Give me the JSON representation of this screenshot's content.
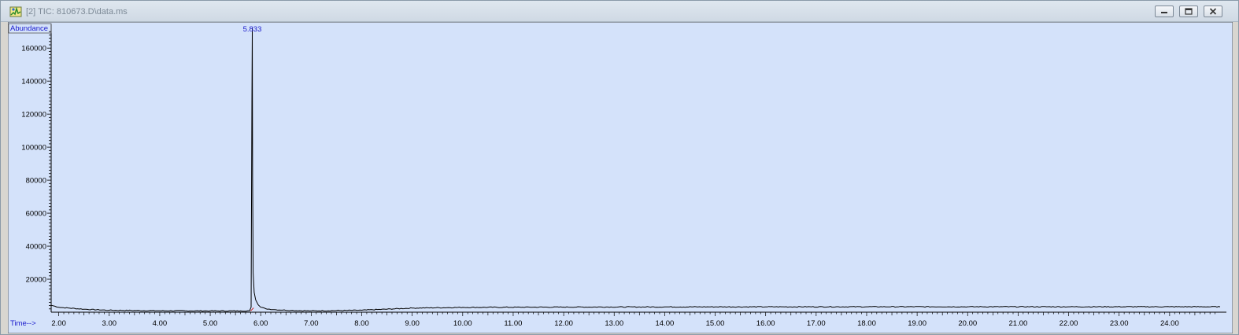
{
  "window": {
    "title": "[2] TIC: 810673.D\\data.ms",
    "icons": [
      "chromatogram-app-icon",
      "minimize-icon",
      "restore-icon",
      "close-icon"
    ]
  },
  "chart_data": {
    "type": "line",
    "title": "",
    "xlabel": "Time-->",
    "ylabel": "Abundance",
    "xlim": [
      1.85,
      25.0
    ],
    "ylim": [
      0,
      172000
    ],
    "x_ticks": [
      "2.00",
      "3.00",
      "4.00",
      "5.00",
      "6.00",
      "7.00",
      "8.00",
      "9.00",
      "10.00",
      "11.00",
      "12.00",
      "13.00",
      "14.00",
      "15.00",
      "16.00",
      "17.00",
      "18.00",
      "19.00",
      "20.00",
      "21.00",
      "22.00",
      "23.00",
      "24.00"
    ],
    "y_ticks": [
      "20000",
      "40000",
      "60000",
      "80000",
      "100000",
      "120000",
      "140000",
      "160000"
    ],
    "peak_labels": [
      {
        "x": 5.833,
        "label": "5.833"
      }
    ],
    "series": [
      {
        "x": [
          1.85,
          2.0,
          2.5,
          3.0,
          4.0,
          5.0,
          5.6,
          5.78,
          5.81,
          5.825,
          5.833,
          5.84,
          5.85,
          5.87,
          5.9,
          5.95,
          6.0,
          6.1,
          6.3,
          6.6,
          7.0,
          8.0,
          9.0,
          10.0,
          12.0,
          14.0,
          16.0,
          18.0,
          20.0,
          22.0,
          24.0,
          25.0
        ],
        "y": [
          4200,
          3000,
          1800,
          1200,
          900,
          800,
          800,
          900,
          3000,
          127000,
          172000,
          82000,
          24000,
          12000,
          7500,
          4500,
          3000,
          2100,
          1500,
          1100,
          800,
          1200,
          2500,
          2900,
          3100,
          3200,
          3250,
          3300,
          3300,
          3300,
          3300,
          3300
        ]
      }
    ],
    "colors": {
      "background": "#d4e2fa",
      "trace": "#000000",
      "peak_label": "#1a1acc",
      "axis_label": "#1a1acc"
    },
    "grid": false
  }
}
